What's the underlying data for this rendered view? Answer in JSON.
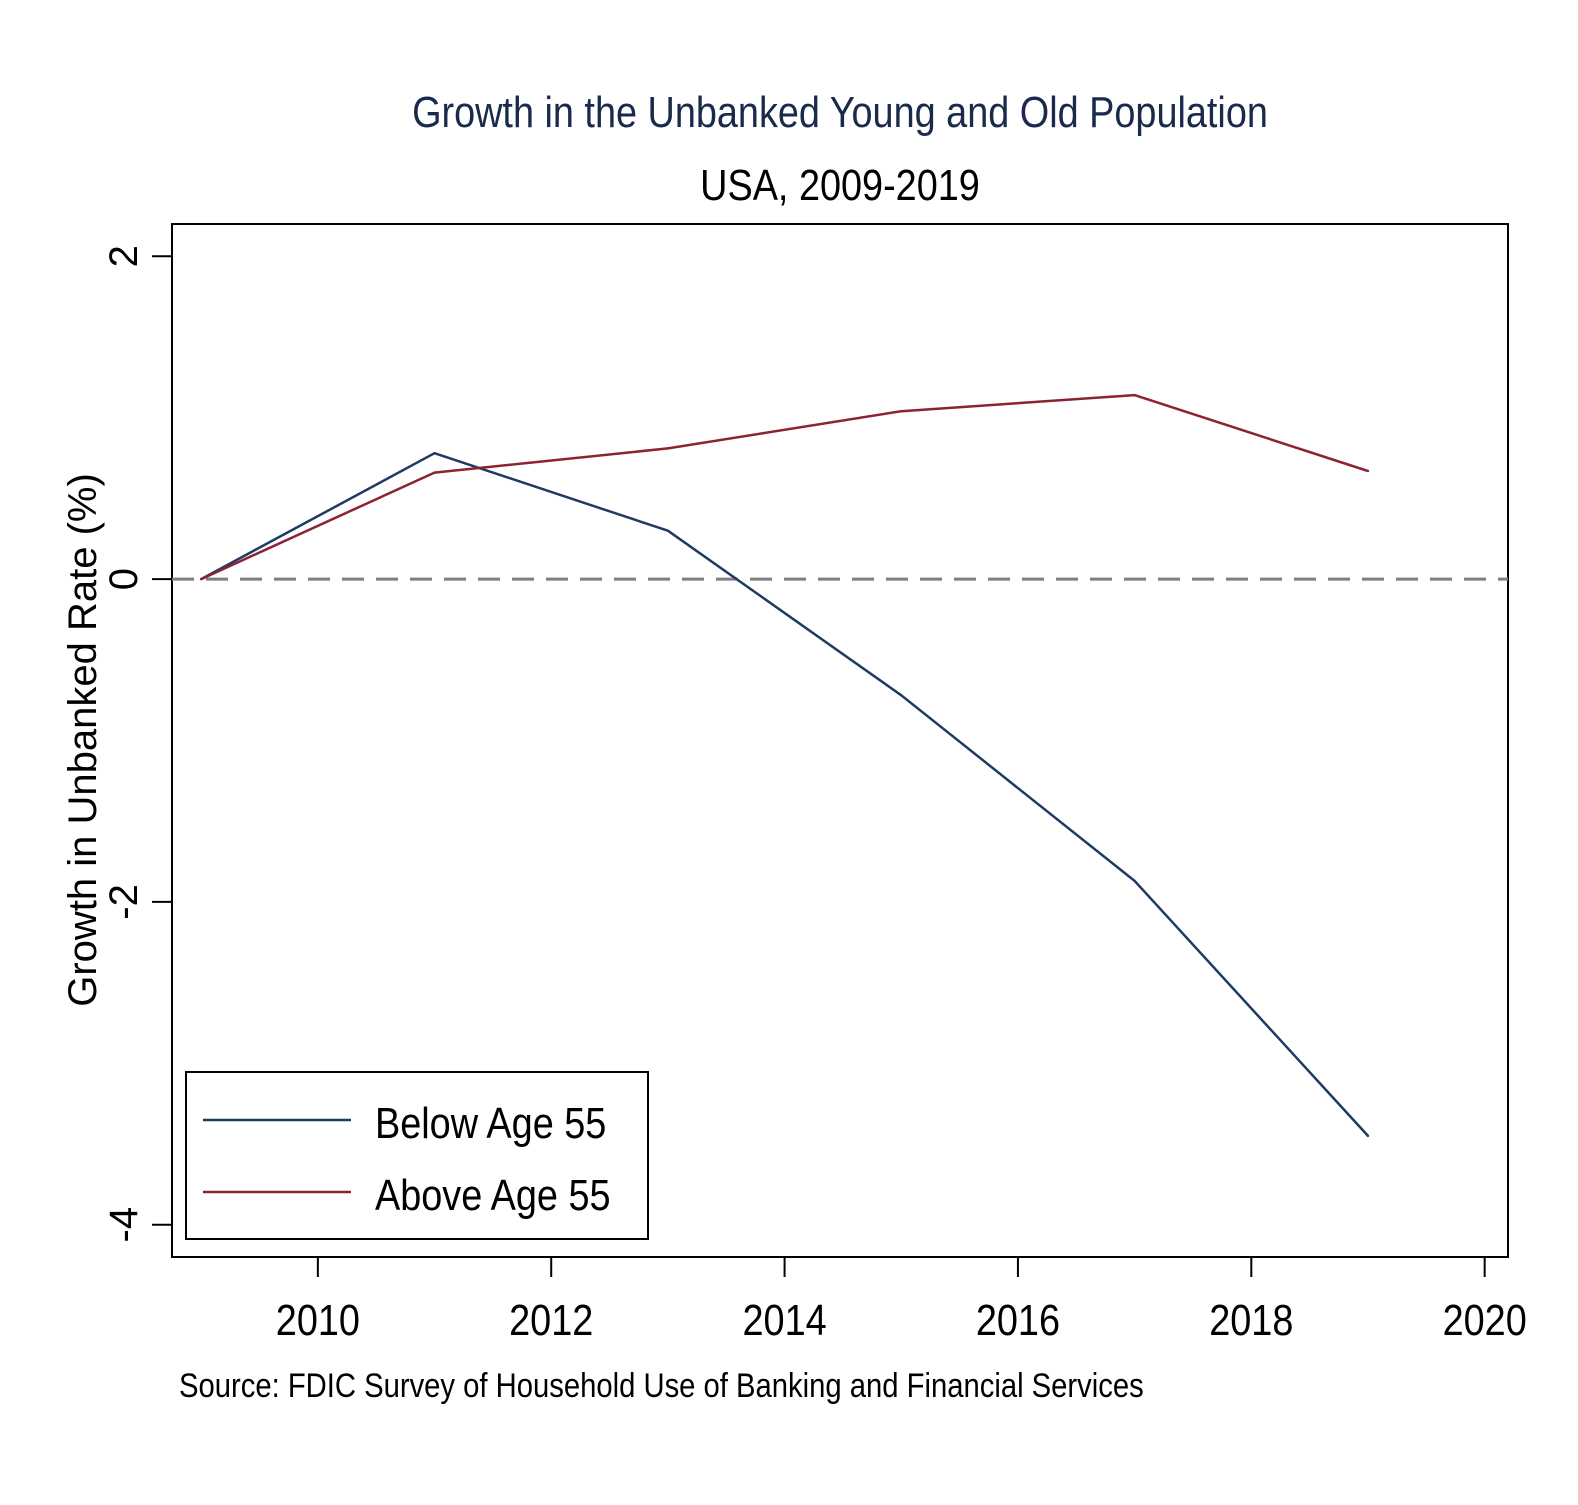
{
  "chart_data": {
    "type": "line",
    "title": "Growth in the Unbanked Young and Old Population",
    "subtitle": "USA, 2009-2019",
    "xlabel": "",
    "ylabel": "Growth in Unbanked Rate (%)",
    "source": "Source: FDIC Survey of Household Use of Banking and Financial Services",
    "xlim": [
      2008.75,
      2020.2
    ],
    "ylim": [
      -4.2,
      2.2
    ],
    "x_ticks": [
      2010,
      2012,
      2014,
      2016,
      2018,
      2020
    ],
    "x_tick_labels": [
      "2010",
      "2012",
      "2014",
      "2016",
      "2018",
      "2020"
    ],
    "y_ticks": [
      2,
      0,
      -2,
      -4
    ],
    "y_tick_labels": [
      "2",
      "0",
      "-2",
      "-4"
    ],
    "reference_line": {
      "y": 0,
      "style": "dashed",
      "color": "#7f7f7f"
    },
    "grid": false,
    "legend": {
      "position": "bottom-left",
      "entries": [
        "Below Age 55",
        "Above Age 55"
      ]
    },
    "x": [
      2009,
      2011,
      2013,
      2015,
      2017,
      2019
    ],
    "series": [
      {
        "name": "Below Age 55",
        "color": "#1f3b63",
        "values": [
          0,
          0.78,
          0.3,
          -0.72,
          -1.87,
          -3.45
        ]
      },
      {
        "name": "Above Age 55",
        "color": "#8b2332",
        "values": [
          0,
          0.66,
          0.81,
          1.04,
          1.14,
          0.67
        ]
      }
    ]
  }
}
